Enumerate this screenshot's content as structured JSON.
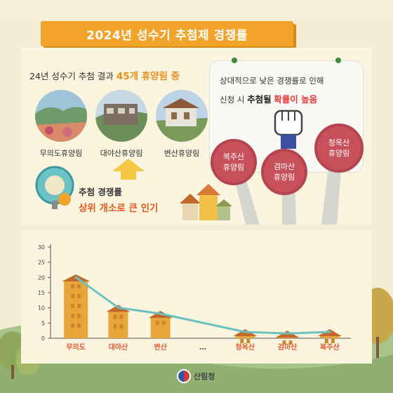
{
  "title": "2024년 성수기 추첨제 경쟁률",
  "lead": {
    "prefix": "24년 성수기 추첨 결과",
    "highlight": "45개 휴양림 중"
  },
  "forests": [
    {
      "label": "무의도휴양림"
    },
    {
      "label": "대야산휴양림"
    },
    {
      "label": "변산휴양림"
    }
  ],
  "caption": {
    "line1": "추첨 경쟁률",
    "line2": "상위 개소로 큰 인기"
  },
  "board": {
    "line1": "상대적으로 낮은 경쟁률로 인해",
    "line2_prefix": "신청 시",
    "line2_bold": "추첨될",
    "line2_red": "확률이 높음"
  },
  "signs": [
    {
      "line1": "복주산",
      "line2": "휴양림"
    },
    {
      "line1": "검마산",
      "line2": "휴양림"
    },
    {
      "line1": "청옥산",
      "line2": "휴양림"
    }
  ],
  "footer": {
    "org": "산림청"
  },
  "colors": {
    "bar": "#e8a53a",
    "bar_dark": "#c9862a",
    "roof": "#c4672b",
    "line": "#6ac1c0",
    "category": "#e55a2e",
    "title_bg": "#f2a32a"
  },
  "chart_data": {
    "type": "bar",
    "categories": [
      "무의도",
      "대야산",
      "변산",
      "…",
      "청옥산",
      "검마산",
      "복주산"
    ],
    "values": [
      21,
      11,
      9,
      null,
      3,
      2.5,
      3
    ],
    "ylim": [
      0,
      30
    ],
    "yticks": [
      0,
      5,
      10,
      15,
      20,
      25,
      30
    ],
    "overlay_line": true,
    "grid": false
  }
}
